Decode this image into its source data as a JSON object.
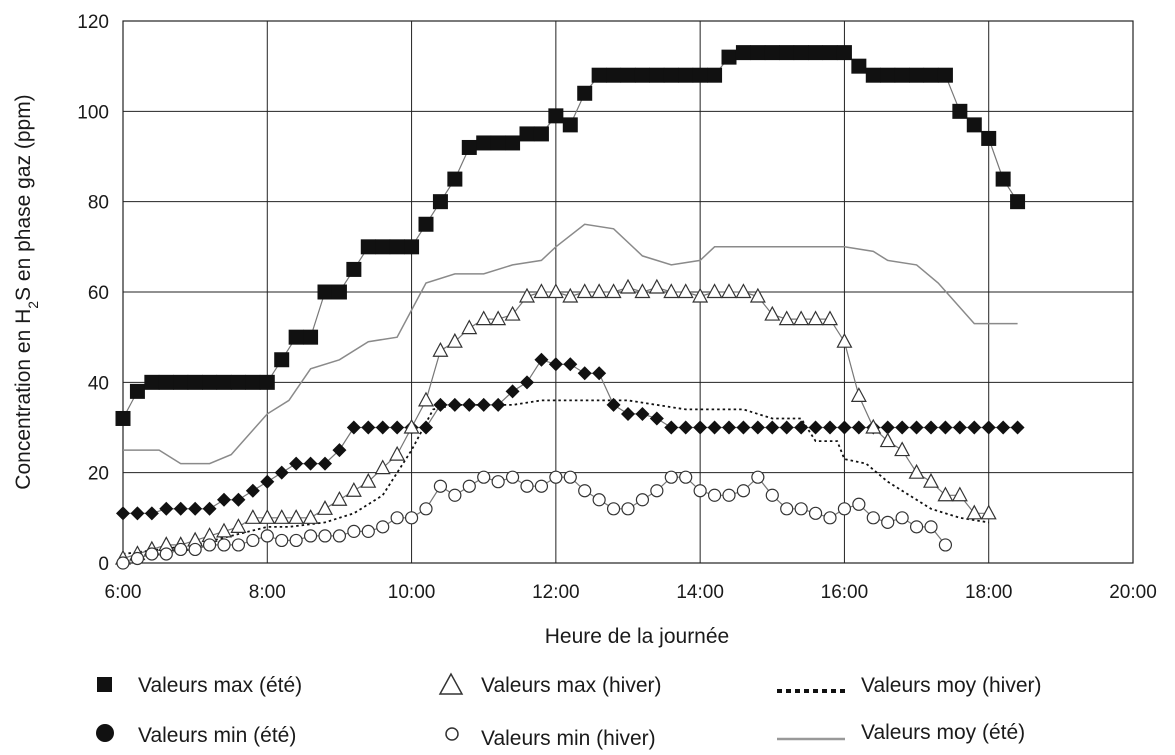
{
  "chart_data": {
    "type": "line",
    "title": "",
    "xlabel": "Heure de la journée",
    "ylabel": {
      "prefix": "Concentration en H",
      "sub": "2",
      "suffix": "S en phase gaz (ppm)"
    },
    "x_ticks": [
      "6:00",
      "8:00",
      "10:00",
      "12:00",
      "14:00",
      "16:00",
      "18:00",
      "20:00"
    ],
    "y_ticks": [
      "0",
      "20",
      "40",
      "60",
      "80",
      "100",
      "120"
    ],
    "xlim": [
      6,
      20
    ],
    "ylim": [
      0,
      120
    ],
    "grid": true,
    "legend_position": "bottom",
    "series": [
      {
        "key": "max_ete",
        "name": "Valeurs max (été)",
        "marker": "square-filled",
        "line": "thin-gray",
        "points": [
          [
            6,
            32
          ],
          [
            6.2,
            38
          ],
          [
            6.4,
            40
          ],
          [
            6.6,
            40
          ],
          [
            6.8,
            40
          ],
          [
            7,
            40
          ],
          [
            7.2,
            40
          ],
          [
            7.4,
            40
          ],
          [
            7.6,
            40
          ],
          [
            7.8,
            40
          ],
          [
            8,
            40
          ],
          [
            8.2,
            45
          ],
          [
            8.4,
            50
          ],
          [
            8.6,
            50
          ],
          [
            8.8,
            60
          ],
          [
            9,
            60
          ],
          [
            9.2,
            65
          ],
          [
            9.4,
            70
          ],
          [
            9.6,
            70
          ],
          [
            9.8,
            70
          ],
          [
            10,
            70
          ],
          [
            10.2,
            75
          ],
          [
            10.4,
            80
          ],
          [
            10.6,
            85
          ],
          [
            10.8,
            92
          ],
          [
            11,
            93
          ],
          [
            11.2,
            93
          ],
          [
            11.4,
            93
          ],
          [
            11.6,
            95
          ],
          [
            11.8,
            95
          ],
          [
            12,
            99
          ],
          [
            12.2,
            97
          ],
          [
            12.4,
            104
          ],
          [
            12.6,
            108
          ],
          [
            12.8,
            108
          ],
          [
            13,
            108
          ],
          [
            13.2,
            108
          ],
          [
            13.4,
            108
          ],
          [
            13.6,
            108
          ],
          [
            13.8,
            108
          ],
          [
            14,
            108
          ],
          [
            14.2,
            108
          ],
          [
            14.4,
            112
          ],
          [
            14.6,
            113
          ],
          [
            14.8,
            113
          ],
          [
            15,
            113
          ],
          [
            15.2,
            113
          ],
          [
            15.4,
            113
          ],
          [
            15.6,
            113
          ],
          [
            15.8,
            113
          ],
          [
            16,
            113
          ],
          [
            16.2,
            110
          ],
          [
            16.4,
            108
          ],
          [
            16.6,
            108
          ],
          [
            16.8,
            108
          ],
          [
            17,
            108
          ],
          [
            17.2,
            108
          ],
          [
            17.4,
            108
          ],
          [
            17.6,
            100
          ],
          [
            17.8,
            97
          ],
          [
            18,
            94
          ],
          [
            18.2,
            85
          ],
          [
            18.4,
            80
          ]
        ]
      },
      {
        "key": "min_ete",
        "name": "Valeurs min (été)",
        "marker": "diamond-filled",
        "line": "thin-gray",
        "points": [
          [
            6,
            11
          ],
          [
            6.2,
            11
          ],
          [
            6.4,
            11
          ],
          [
            6.6,
            12
          ],
          [
            6.8,
            12
          ],
          [
            7,
            12
          ],
          [
            7.2,
            12
          ],
          [
            7.4,
            14
          ],
          [
            7.6,
            14
          ],
          [
            7.8,
            16
          ],
          [
            8,
            18
          ],
          [
            8.2,
            20
          ],
          [
            8.4,
            22
          ],
          [
            8.6,
            22
          ],
          [
            8.8,
            22
          ],
          [
            9,
            25
          ],
          [
            9.2,
            30
          ],
          [
            9.4,
            30
          ],
          [
            9.6,
            30
          ],
          [
            9.8,
            30
          ],
          [
            10,
            30
          ],
          [
            10.2,
            30
          ],
          [
            10.4,
            35
          ],
          [
            10.6,
            35
          ],
          [
            10.8,
            35
          ],
          [
            11,
            35
          ],
          [
            11.2,
            35
          ],
          [
            11.4,
            38
          ],
          [
            11.6,
            40
          ],
          [
            11.8,
            45
          ],
          [
            12,
            44
          ],
          [
            12.2,
            44
          ],
          [
            12.4,
            42
          ],
          [
            12.6,
            42
          ],
          [
            12.8,
            35
          ],
          [
            13,
            33
          ],
          [
            13.2,
            33
          ],
          [
            13.4,
            32
          ],
          [
            13.6,
            30
          ],
          [
            13.8,
            30
          ],
          [
            14,
            30
          ],
          [
            14.2,
            30
          ],
          [
            14.4,
            30
          ],
          [
            14.6,
            30
          ],
          [
            14.8,
            30
          ],
          [
            15,
            30
          ],
          [
            15.2,
            30
          ],
          [
            15.4,
            30
          ],
          [
            15.6,
            30
          ],
          [
            15.8,
            30
          ],
          [
            16,
            30
          ],
          [
            16.2,
            30
          ],
          [
            16.4,
            30
          ],
          [
            16.6,
            30
          ],
          [
            16.8,
            30
          ],
          [
            17,
            30
          ],
          [
            17.2,
            30
          ],
          [
            17.4,
            30
          ],
          [
            17.6,
            30
          ],
          [
            17.8,
            30
          ],
          [
            18,
            30
          ],
          [
            18.2,
            30
          ],
          [
            18.4,
            30
          ]
        ]
      },
      {
        "key": "max_hiver",
        "name": "Valeurs max (hiver)",
        "marker": "triangle-open",
        "line": "thin-gray",
        "points": [
          [
            6,
            1
          ],
          [
            6.2,
            2
          ],
          [
            6.4,
            3
          ],
          [
            6.6,
            4
          ],
          [
            6.8,
            4
          ],
          [
            7,
            5
          ],
          [
            7.2,
            6
          ],
          [
            7.4,
            7
          ],
          [
            7.6,
            8
          ],
          [
            7.8,
            10
          ],
          [
            8,
            10
          ],
          [
            8.2,
            10
          ],
          [
            8.4,
            10
          ],
          [
            8.6,
            10
          ],
          [
            8.8,
            12
          ],
          [
            9,
            14
          ],
          [
            9.2,
            16
          ],
          [
            9.4,
            18
          ],
          [
            9.6,
            21
          ],
          [
            9.8,
            24
          ],
          [
            10,
            30
          ],
          [
            10.2,
            36
          ],
          [
            10.4,
            47
          ],
          [
            10.6,
            49
          ],
          [
            10.8,
            52
          ],
          [
            11,
            54
          ],
          [
            11.2,
            54
          ],
          [
            11.4,
            55
          ],
          [
            11.6,
            59
          ],
          [
            11.8,
            60
          ],
          [
            12,
            60
          ],
          [
            12.2,
            59
          ],
          [
            12.4,
            60
          ],
          [
            12.6,
            60
          ],
          [
            12.8,
            60
          ],
          [
            13,
            61
          ],
          [
            13.2,
            60
          ],
          [
            13.4,
            61
          ],
          [
            13.6,
            60
          ],
          [
            13.8,
            60
          ],
          [
            14,
            59
          ],
          [
            14.2,
            60
          ],
          [
            14.4,
            60
          ],
          [
            14.6,
            60
          ],
          [
            14.8,
            59
          ],
          [
            15,
            55
          ],
          [
            15.2,
            54
          ],
          [
            15.4,
            54
          ],
          [
            15.6,
            54
          ],
          [
            15.8,
            54
          ],
          [
            16,
            49
          ],
          [
            16.2,
            37
          ],
          [
            16.4,
            30
          ],
          [
            16.6,
            27
          ],
          [
            16.8,
            25
          ],
          [
            17,
            20
          ],
          [
            17.2,
            18
          ],
          [
            17.4,
            15
          ],
          [
            17.6,
            15
          ],
          [
            17.8,
            11
          ],
          [
            18,
            11
          ]
        ]
      },
      {
        "key": "min_hiver",
        "name": "Valeurs min (hiver)",
        "marker": "circle-open",
        "line": "thin-gray",
        "points": [
          [
            6,
            0
          ],
          [
            6.2,
            1
          ],
          [
            6.4,
            2
          ],
          [
            6.6,
            2
          ],
          [
            6.8,
            3
          ],
          [
            7,
            3
          ],
          [
            7.2,
            4
          ],
          [
            7.4,
            4
          ],
          [
            7.6,
            4
          ],
          [
            7.8,
            5
          ],
          [
            8,
            6
          ],
          [
            8.2,
            5
          ],
          [
            8.4,
            5
          ],
          [
            8.6,
            6
          ],
          [
            8.8,
            6
          ],
          [
            9,
            6
          ],
          [
            9.2,
            7
          ],
          [
            9.4,
            7
          ],
          [
            9.6,
            8
          ],
          [
            9.8,
            10
          ],
          [
            10,
            10
          ],
          [
            10.2,
            12
          ],
          [
            10.4,
            17
          ],
          [
            10.6,
            15
          ],
          [
            10.8,
            17
          ],
          [
            11,
            19
          ],
          [
            11.2,
            18
          ],
          [
            11.4,
            19
          ],
          [
            11.6,
            17
          ],
          [
            11.8,
            17
          ],
          [
            12,
            19
          ],
          [
            12.2,
            19
          ],
          [
            12.4,
            16
          ],
          [
            12.6,
            14
          ],
          [
            12.8,
            12
          ],
          [
            13,
            12
          ],
          [
            13.2,
            14
          ],
          [
            13.4,
            16
          ],
          [
            13.6,
            19
          ],
          [
            13.8,
            19
          ],
          [
            14,
            16
          ],
          [
            14.2,
            15
          ],
          [
            14.4,
            15
          ],
          [
            14.6,
            16
          ],
          [
            14.8,
            19
          ],
          [
            15,
            15
          ],
          [
            15.2,
            12
          ],
          [
            15.4,
            12
          ],
          [
            15.6,
            11
          ],
          [
            15.8,
            10
          ],
          [
            16,
            12
          ],
          [
            16.2,
            13
          ],
          [
            16.4,
            10
          ],
          [
            16.6,
            9
          ],
          [
            16.8,
            10
          ],
          [
            17,
            8
          ],
          [
            17.2,
            8
          ],
          [
            17.4,
            4
          ]
        ]
      },
      {
        "key": "moy_hiver",
        "name": "Valeurs moy (hiver)",
        "marker": "none",
        "line": "dotted-black",
        "points": [
          [
            6,
            2
          ],
          [
            6.5,
            3
          ],
          [
            7,
            4
          ],
          [
            7.5,
            6
          ],
          [
            8,
            8
          ],
          [
            8.3,
            8
          ],
          [
            8.8,
            9
          ],
          [
            9.2,
            11
          ],
          [
            9.6,
            15
          ],
          [
            10,
            25
          ],
          [
            10.3,
            34
          ],
          [
            10.6,
            35
          ],
          [
            11,
            35
          ],
          [
            11.4,
            35
          ],
          [
            11.8,
            36
          ],
          [
            12.2,
            36
          ],
          [
            12.6,
            36
          ],
          [
            13.0,
            36
          ],
          [
            13.4,
            35
          ],
          [
            13.8,
            34
          ],
          [
            14.2,
            34
          ],
          [
            14.6,
            34
          ],
          [
            15,
            32
          ],
          [
            15.4,
            32
          ],
          [
            15.6,
            27
          ],
          [
            15.9,
            27
          ],
          [
            16,
            23
          ],
          [
            16.3,
            22
          ],
          [
            16.6,
            18
          ],
          [
            16.9,
            15
          ],
          [
            17.2,
            12
          ],
          [
            17.6,
            10
          ],
          [
            18,
            9
          ]
        ]
      },
      {
        "key": "moy_ete",
        "name": "Valeurs moy (été)",
        "marker": "none",
        "line": "solid-gray",
        "points": [
          [
            6,
            25
          ],
          [
            6.5,
            25
          ],
          [
            6.8,
            22
          ],
          [
            7.2,
            22
          ],
          [
            7.5,
            24
          ],
          [
            8,
            33
          ],
          [
            8.3,
            36
          ],
          [
            8.6,
            43
          ],
          [
            9,
            45
          ],
          [
            9.4,
            49
          ],
          [
            9.8,
            50
          ],
          [
            10.2,
            62
          ],
          [
            10.6,
            64
          ],
          [
            11,
            64
          ],
          [
            11.4,
            66
          ],
          [
            11.8,
            67
          ],
          [
            12,
            70
          ],
          [
            12.4,
            75
          ],
          [
            12.8,
            74
          ],
          [
            13.2,
            68
          ],
          [
            13.6,
            66
          ],
          [
            14,
            67
          ],
          [
            14.2,
            70
          ],
          [
            14.6,
            70
          ],
          [
            15,
            70
          ],
          [
            15.4,
            70
          ],
          [
            15.8,
            70
          ],
          [
            16,
            70
          ],
          [
            16.4,
            69
          ],
          [
            16.6,
            67
          ],
          [
            17,
            66
          ],
          [
            17.3,
            62
          ],
          [
            17.8,
            53
          ],
          [
            18.4,
            53
          ]
        ]
      }
    ]
  }
}
